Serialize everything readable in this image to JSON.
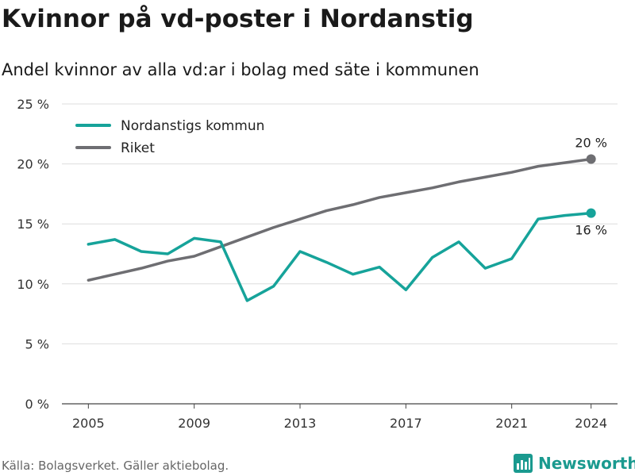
{
  "title": "Kvinnor på vd-poster i Nordanstig",
  "subtitle": "Andel kvinnor av alla vd:ar i bolag med säte i kommunen",
  "footer": "Källa: Bolagsverket. Gäller aktiebolag.",
  "brand": "Newsworthy",
  "colors": {
    "nordanstig": "#16a39a",
    "riket": "#6e6e72",
    "grid": "#dddddd",
    "brand": "#1a9a8f"
  },
  "chart_data": {
    "type": "line",
    "title": "Kvinnor på vd-poster i Nordanstig",
    "subtitle": "Andel kvinnor av alla vd:ar i bolag med säte i kommunen",
    "xlabel": "",
    "ylabel": "",
    "x": [
      2005,
      2006,
      2007,
      2008,
      2009,
      2010,
      2011,
      2012,
      2013,
      2014,
      2015,
      2016,
      2017,
      2018,
      2019,
      2020,
      2021,
      2022,
      2023,
      2024
    ],
    "xticks": [
      "2005",
      "2009",
      "2013",
      "2017",
      "2021",
      "2024"
    ],
    "ylim": [
      0,
      25
    ],
    "yticks": [
      "0 %",
      "5 %",
      "10 %",
      "15 %",
      "20 %",
      "25 %"
    ],
    "grid": true,
    "legend_position": "top-left",
    "series": [
      {
        "name": "Nordanstigs kommun",
        "color": "#16a39a",
        "values": [
          13.3,
          13.7,
          12.7,
          12.5,
          13.8,
          13.5,
          8.6,
          9.8,
          12.7,
          11.8,
          10.8,
          11.4,
          9.5,
          12.2,
          13.5,
          11.3,
          12.1,
          15.4,
          15.7,
          15.9
        ],
        "end_label": "16 %"
      },
      {
        "name": "Riket",
        "color": "#6e6e72",
        "values": [
          10.3,
          10.8,
          11.3,
          11.9,
          12.3,
          13.1,
          13.9,
          14.7,
          15.4,
          16.1,
          16.6,
          17.2,
          17.6,
          18.0,
          18.5,
          18.9,
          19.3,
          19.8,
          20.1,
          20.4
        ],
        "end_label": "20 %"
      }
    ]
  }
}
